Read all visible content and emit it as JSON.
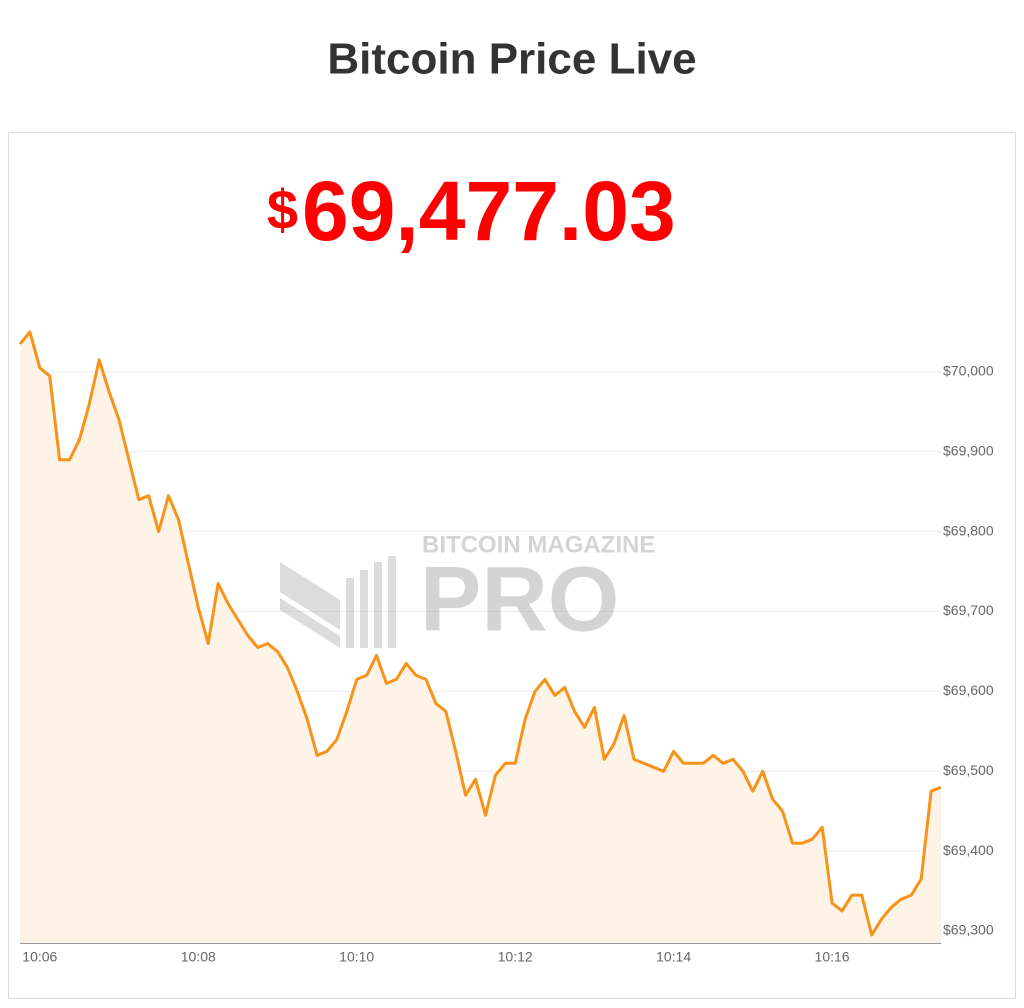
{
  "chart_data": {
    "type": "area-line",
    "title": "Bitcoin Price Live",
    "price_prefix": "$",
    "price": "69,477.03",
    "watermark_top": "BITCOIN MAGAZINE",
    "watermark_main": "PRO",
    "color": "#f7931a",
    "fill_color": "#fdf3e6",
    "price_color": "#ff0000",
    "categories": [
      null,
      null,
      "10:06",
      null,
      null,
      null,
      null,
      null,
      null,
      null,
      null,
      null,
      null,
      null,
      null,
      null,
      null,
      null,
      "10:08",
      null,
      null,
      null,
      null,
      null,
      null,
      null,
      null,
      null,
      null,
      null,
      null,
      null,
      null,
      null,
      "10:10",
      null,
      null,
      null,
      null,
      null,
      null,
      null,
      null,
      null,
      null,
      null,
      null,
      null,
      null,
      null,
      "10:12",
      null,
      null,
      null,
      null,
      null,
      null,
      null,
      null,
      null,
      null,
      null,
      null,
      null,
      null,
      null,
      "10:14",
      null,
      null,
      null,
      null,
      null,
      null,
      null,
      null,
      null,
      null,
      null,
      null,
      null,
      null,
      null,
      "10:16",
      null,
      null,
      null,
      null,
      null,
      null,
      null,
      null,
      null,
      null,
      null
    ],
    "values": [
      70035,
      70050,
      70005,
      69995,
      69890,
      69890,
      69915,
      69960,
      70015,
      69975,
      69940,
      69890,
      69840,
      69845,
      69800,
      69845,
      69815,
      69760,
      69705,
      69660,
      69735,
      69710,
      69690,
      69670,
      69655,
      69660,
      69650,
      69630,
      69600,
      69565,
      69520,
      69525,
      69540,
      69575,
      69615,
      69620,
      69645,
      69610,
      69615,
      69635,
      69620,
      69615,
      69585,
      69575,
      69525,
      69470,
      69490,
      69445,
      69495,
      69510,
      69510,
      69565,
      69600,
      69615,
      69595,
      69605,
      69575,
      69555,
      69580,
      69515,
      69535,
      69570,
      69515,
      69510,
      69505,
      69500,
      69525,
      69510,
      69510,
      69510,
      69520,
      69510,
      69515,
      69500,
      69475,
      69500,
      69465,
      69450,
      69410,
      69410,
      69415,
      69430,
      69335,
      69325,
      69345,
      69345,
      69295,
      69315,
      69330,
      69340,
      69345,
      69365,
      69475,
      69480
    ],
    "ylim": [
      69285,
      70090
    ],
    "yticks": [
      {
        "value": 69300,
        "label": "$69,300"
      },
      {
        "value": 69400,
        "label": "$69,400"
      },
      {
        "value": 69500,
        "label": "$69,500"
      },
      {
        "value": 69600,
        "label": "$69,600"
      },
      {
        "value": 69700,
        "label": "$69,700"
      },
      {
        "value": 69800,
        "label": "$69,800"
      },
      {
        "value": 69900,
        "label": "$69,900"
      },
      {
        "value": 70000,
        "label": "$70,000"
      }
    ],
    "grid": true
  }
}
